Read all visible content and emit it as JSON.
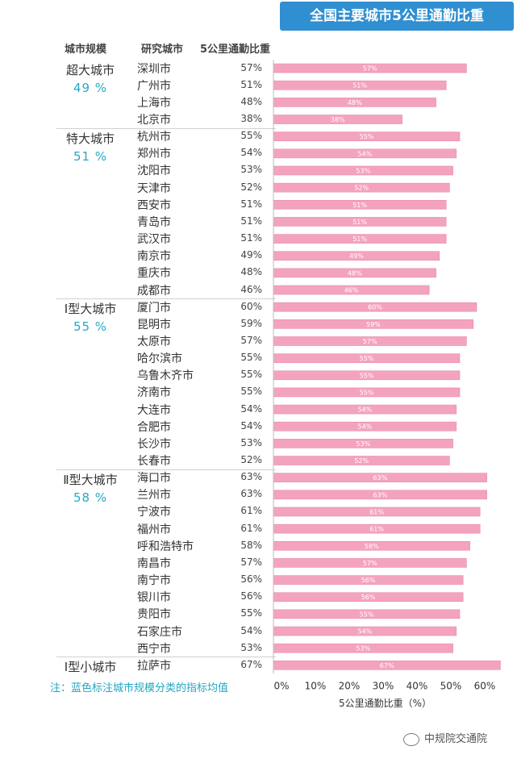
{
  "header": {
    "title": "全国主要城市5公里通勤比重",
    "col_scale": "城市规模",
    "col_city": "研究城市",
    "col_ratio": "5公里通勤比重"
  },
  "note": "注：蓝色标注城市规模分类的指标均值",
  "watermark": "中规院交通院",
  "colors": {
    "bar": "#f4a3bf",
    "bar_border": "#e68aab",
    "title_bg": "#2f8fd0",
    "avg_text": "#27a9c4"
  },
  "chart_data": {
    "type": "bar",
    "orientation": "horizontal",
    "title": "全国主要城市5公里通勤比重",
    "xlabel": "5公里通勤比重（%）",
    "xlim": [
      0,
      67
    ],
    "x_ticks": [
      "0%",
      "10%",
      "20%",
      "30%",
      "40%",
      "50%",
      "60%"
    ],
    "grid": false,
    "groups": [
      {
        "name": "超大城市",
        "avg": "49 %",
        "count": 4
      },
      {
        "name": "特大城市",
        "avg": "51 %",
        "count": 10
      },
      {
        "name": "Ⅰ型大城市",
        "avg": "55 %",
        "count": 10
      },
      {
        "name": "Ⅱ型大城市",
        "avg": "58 %",
        "count": 11
      },
      {
        "name": "Ⅰ型小城市",
        "avg": "",
        "count": 1
      }
    ],
    "categories": [
      "深圳市",
      "广州市",
      "上海市",
      "北京市",
      "杭州市",
      "郑州市",
      "沈阳市",
      "天津市",
      "西安市",
      "青岛市",
      "武汉市",
      "南京市",
      "重庆市",
      "成都市",
      "厦门市",
      "昆明市",
      "太原市",
      "哈尔滨市",
      "乌鲁木齐市",
      "济南市",
      "大连市",
      "合肥市",
      "长沙市",
      "长春市",
      "海口市",
      "兰州市",
      "宁波市",
      "福州市",
      "呼和浩特市",
      "南昌市",
      "南宁市",
      "银川市",
      "贵阳市",
      "石家庄市",
      "西宁市",
      "拉萨市"
    ],
    "values": [
      57,
      51,
      48,
      38,
      55,
      54,
      53,
      52,
      51,
      51,
      51,
      49,
      48,
      46,
      60,
      59,
      57,
      55,
      55,
      55,
      54,
      54,
      53,
      52,
      63,
      63,
      61,
      61,
      58,
      57,
      56,
      56,
      55,
      54,
      53,
      67
    ],
    "labels": [
      "57%",
      "51%",
      "48%",
      "38%",
      "55%",
      "54%",
      "53%",
      "52%",
      "51%",
      "51%",
      "51%",
      "49%",
      "48%",
      "46%",
      "60%",
      "59%",
      "57%",
      "55%",
      "55%",
      "55%",
      "54%",
      "54%",
      "53%",
      "52%",
      "63%",
      "63%",
      "61%",
      "61%",
      "58%",
      "57%",
      "56%",
      "56%",
      "55%",
      "54%",
      "53%",
      "67%"
    ]
  }
}
